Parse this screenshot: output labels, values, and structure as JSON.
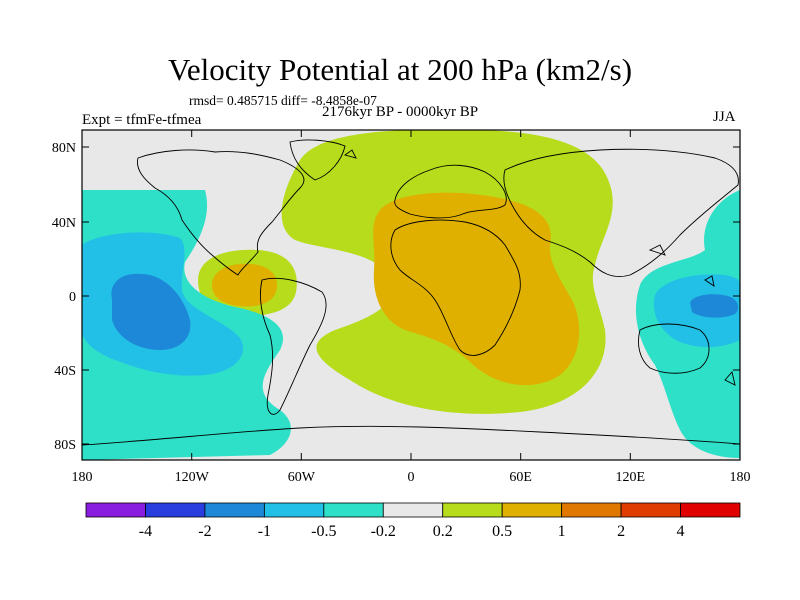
{
  "title": "Velocity Potential at 200 hPa (km2/s)",
  "stats": "rmsd= 0.485715 diff= -8.4858e-07",
  "experiment": "Expt = tfmFe-tfmea",
  "period": "2176kyr BP - 0000kyr BP",
  "season": "JJA",
  "lat_ticks": [
    "80N",
    "40N",
    "0",
    "40S",
    "80S"
  ],
  "lon_ticks": [
    "180",
    "120W",
    "60W",
    "0",
    "60E",
    "120E",
    "180"
  ],
  "colorbar": {
    "labels": [
      "-4",
      "-2",
      "-1",
      "-0.5",
      "-0.2",
      "0.2",
      "0.5",
      "1",
      "2",
      "4"
    ],
    "colors": [
      "#8a1ee0",
      "#2a3ee0",
      "#1e88d8",
      "#22c0e6",
      "#2ee0c8",
      "#e8e8e8",
      "#b6dc1c",
      "#e0b000",
      "#e07800",
      "#e03c00",
      "#e00000"
    ]
  },
  "field_colors": {
    "neutral": "#e8e8e8",
    "weak_positive": "#b6dc1c",
    "positive": "#e0b000",
    "weak_negative": "#2ee0c8",
    "negative": "#22c0e6",
    "strong_negative": "#1e88d8",
    "coastline": "#000000"
  }
}
